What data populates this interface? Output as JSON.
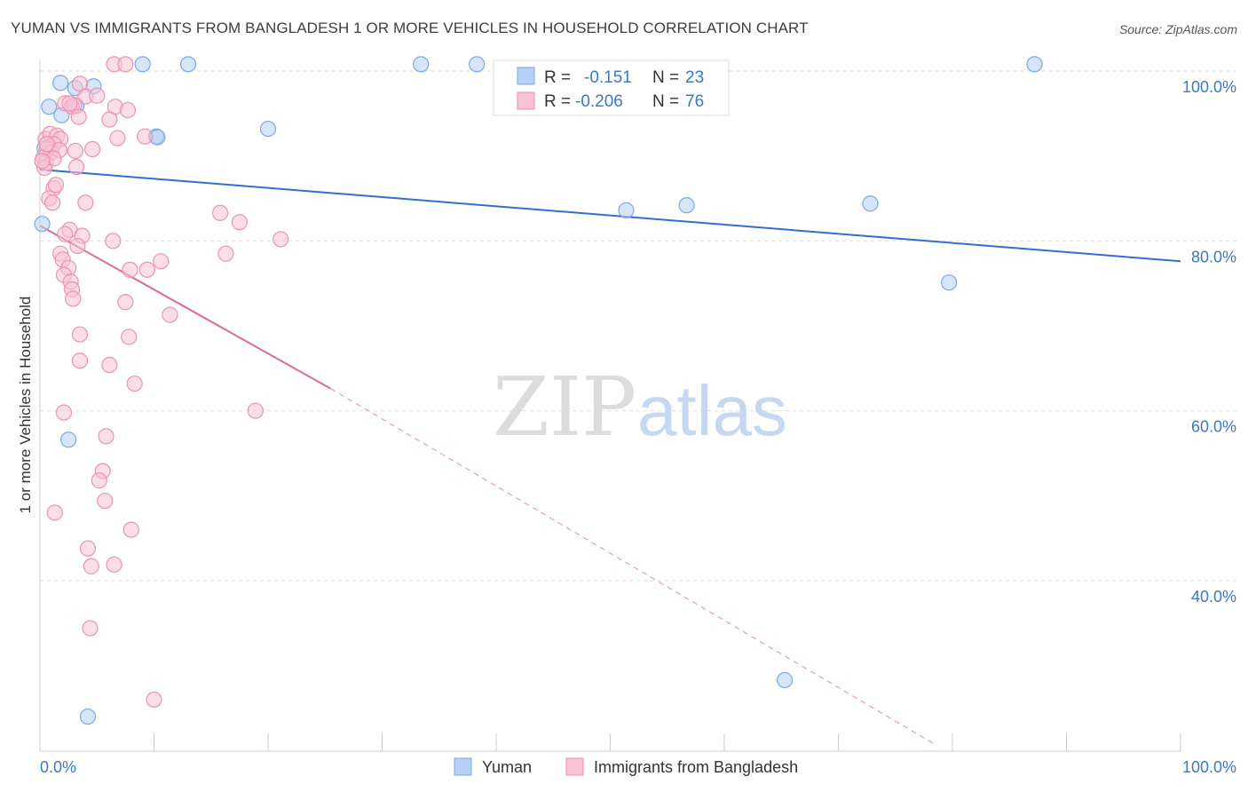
{
  "chart_data": {
    "type": "scatter",
    "title": "YUMAN VS IMMIGRANTS FROM BANGLADESH 1 OR MORE VEHICLES IN HOUSEHOLD CORRELATION CHART",
    "source": "Source: ZipAtlas.com",
    "xlabel": "",
    "ylabel": "1 or more Vehicles in Household",
    "xlim": [
      0,
      100
    ],
    "ylim": [
      20,
      102
    ],
    "x_tick_labels": [
      "0.0%",
      "100.0%"
    ],
    "y_ticks": [
      40,
      60,
      80,
      100
    ],
    "y_tick_labels": [
      "40.0%",
      "60.0%",
      "80.0%",
      "100.0%"
    ],
    "watermark": {
      "part1": "ZIP",
      "part2": "atlas"
    },
    "legend": {
      "rows": [
        {
          "r_label": "R =",
          "r_value": "-0.151",
          "n_label": "N =",
          "n_value": "23"
        },
        {
          "r_label": "R =",
          "r_value": "-0.206",
          "n_label": "N =",
          "n_value": "76"
        }
      ]
    },
    "series": [
      {
        "name": "Yuman",
        "color": "#7aaae6",
        "fill": "#b7d0f3",
        "line_color": "#2f6fd0",
        "trend": {
          "x0": 0,
          "y0": 88.4,
          "x1": 100,
          "y1": 77.6,
          "dashed_from": null
        },
        "points": [
          [
            0.2,
            82.0
          ],
          [
            0.8,
            95.8
          ],
          [
            1.8,
            98.6
          ],
          [
            1.9,
            94.8
          ],
          [
            3.1,
            98.0
          ],
          [
            4.7,
            98.2
          ],
          [
            3.2,
            95.9
          ],
          [
            9.0,
            100.8
          ],
          [
            13.0,
            100.8
          ],
          [
            10.2,
            92.3
          ],
          [
            10.3,
            92.2
          ],
          [
            20.0,
            93.2
          ],
          [
            33.4,
            100.8
          ],
          [
            38.3,
            100.8
          ],
          [
            51.4,
            83.6
          ],
          [
            56.7,
            84.2
          ],
          [
            72.8,
            84.4
          ],
          [
            79.7,
            75.1
          ],
          [
            87.2,
            100.8
          ],
          [
            2.5,
            56.6
          ],
          [
            65.3,
            28.3
          ],
          [
            4.2,
            24.0
          ],
          [
            0.4,
            90.9
          ]
        ]
      },
      {
        "name": "Immigrants from Bangladesh",
        "color": "#ec92b2",
        "fill": "#f7c3d5",
        "line_color": "#e06a96",
        "trend": {
          "x0": 0,
          "y0": 81.8,
          "x1": 25.5,
          "y1": 62.6,
          "dash_x1": 78.5,
          "dash_y1": 20.7
        },
        "points": [
          [
            6.5,
            100.8
          ],
          [
            7.5,
            100.8
          ],
          [
            3.5,
            98.5
          ],
          [
            4.0,
            97.0
          ],
          [
            2.2,
            96.2
          ],
          [
            2.8,
            95.8
          ],
          [
            3.0,
            96.0
          ],
          [
            6.6,
            95.8
          ],
          [
            7.7,
            95.4
          ],
          [
            3.4,
            94.6
          ],
          [
            6.1,
            94.3
          ],
          [
            9.2,
            92.3
          ],
          [
            0.5,
            92.0
          ],
          [
            0.9,
            92.6
          ],
          [
            1.5,
            92.4
          ],
          [
            1.8,
            92.0
          ],
          [
            1.2,
            91.4
          ],
          [
            0.6,
            90.8
          ],
          [
            1.0,
            90.4
          ],
          [
            1.7,
            90.7
          ],
          [
            3.1,
            90.6
          ],
          [
            4.6,
            90.8
          ],
          [
            0.3,
            89.8
          ],
          [
            0.5,
            89.2
          ],
          [
            1.2,
            89.7
          ],
          [
            0.4,
            88.6
          ],
          [
            3.2,
            88.7
          ],
          [
            6.8,
            92.1
          ],
          [
            1.2,
            86.2
          ],
          [
            0.8,
            85.0
          ],
          [
            1.1,
            84.5
          ],
          [
            4.0,
            84.5
          ],
          [
            15.8,
            83.3
          ],
          [
            17.5,
            82.2
          ],
          [
            2.6,
            81.3
          ],
          [
            3.7,
            80.6
          ],
          [
            6.4,
            80.0
          ],
          [
            21.1,
            80.2
          ],
          [
            3.3,
            79.4
          ],
          [
            1.8,
            78.5
          ],
          [
            16.3,
            78.5
          ],
          [
            2.0,
            77.8
          ],
          [
            10.6,
            77.6
          ],
          [
            7.9,
            76.6
          ],
          [
            9.4,
            76.6
          ],
          [
            2.5,
            76.8
          ],
          [
            2.1,
            76.0
          ],
          [
            2.7,
            75.2
          ],
          [
            2.8,
            74.3
          ],
          [
            2.9,
            73.2
          ],
          [
            7.5,
            72.8
          ],
          [
            11.4,
            71.3
          ],
          [
            3.5,
            69.0
          ],
          [
            7.8,
            68.7
          ],
          [
            3.5,
            65.9
          ],
          [
            6.1,
            65.4
          ],
          [
            8.3,
            63.2
          ],
          [
            2.1,
            59.8
          ],
          [
            18.9,
            60.0
          ],
          [
            5.8,
            57.0
          ],
          [
            5.5,
            52.9
          ],
          [
            5.2,
            51.8
          ],
          [
            5.7,
            49.4
          ],
          [
            1.3,
            48.0
          ],
          [
            8.0,
            46.0
          ],
          [
            4.2,
            43.8
          ],
          [
            4.5,
            41.7
          ],
          [
            6.5,
            41.9
          ],
          [
            4.4,
            34.4
          ],
          [
            10.0,
            26.0
          ],
          [
            0.6,
            91.4
          ],
          [
            0.2,
            89.4
          ],
          [
            2.6,
            96.2
          ],
          [
            5.0,
            97.1
          ],
          [
            1.4,
            86.6
          ],
          [
            2.2,
            80.8
          ]
        ]
      }
    ]
  }
}
